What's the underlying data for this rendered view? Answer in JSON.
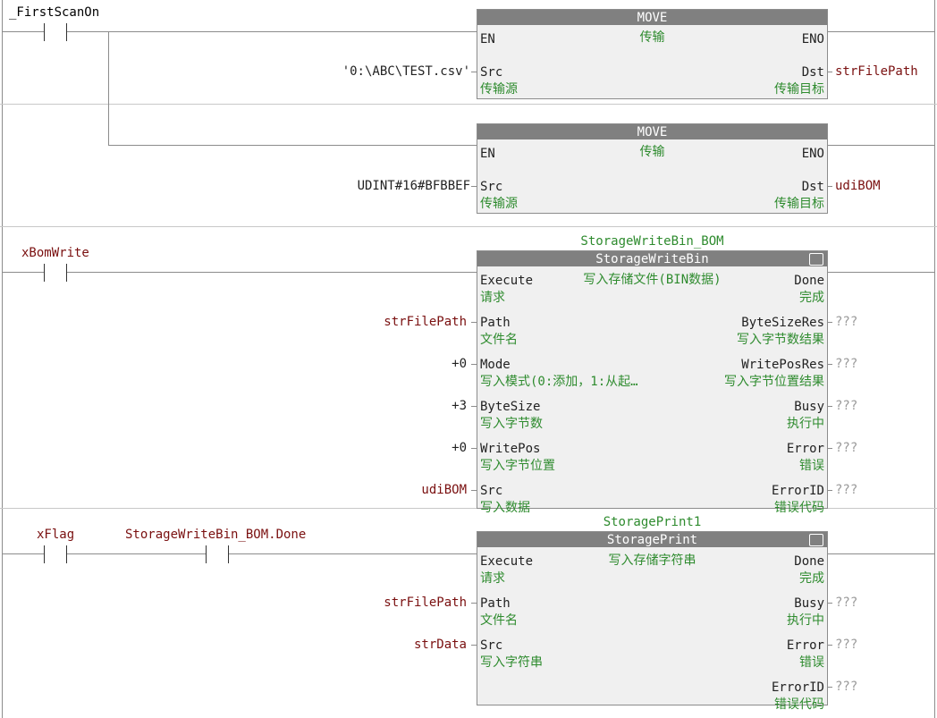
{
  "rung1": {
    "contact_label": "_FirstScanOn",
    "block1": {
      "header": "MOVE",
      "subtitle": "传输",
      "en": "EN",
      "eno": "ENO",
      "src": "Src",
      "src_cn": "传输源",
      "dst": "Dst",
      "dst_cn": "传输目标",
      "src_value": "'0:\\ABC\\TEST.csv'",
      "dst_var": "strFilePath"
    },
    "block2": {
      "header": "MOVE",
      "subtitle": "传输",
      "en": "EN",
      "eno": "ENO",
      "src": "Src",
      "src_cn": "传输源",
      "dst": "Dst",
      "dst_cn": "传输目标",
      "src_value": "UDINT#16#BFBBEF",
      "dst_var": "udiBOM"
    }
  },
  "rung2": {
    "contact_label": "xBomWrite",
    "instance": "StorageWriteBin_BOM",
    "header": "StorageWriteBin",
    "subtitle": "写入存储文件(BIN数据)",
    "inputs": [
      {
        "name": "Execute",
        "cn": "请求",
        "value": ""
      },
      {
        "name": "Path",
        "cn": "文件名",
        "value": "strFilePath"
      },
      {
        "name": "Mode",
        "cn": "写入模式(0:添加，1:从起…",
        "value": "+0"
      },
      {
        "name": "ByteSize",
        "cn": "写入字节数",
        "value": "+3"
      },
      {
        "name": "WritePos",
        "cn": "写入字节位置",
        "value": "+0"
      },
      {
        "name": "Src",
        "cn": "写入数据",
        "value": "udiBOM"
      }
    ],
    "outputs": [
      {
        "name": "Done",
        "cn": "完成",
        "value": ""
      },
      {
        "name": "ByteSizeRes",
        "cn": "写入字节数结果",
        "value": "???"
      },
      {
        "name": "WritePosRes",
        "cn": "写入字节位置结果",
        "value": "???"
      },
      {
        "name": "Busy",
        "cn": "执行中",
        "value": "???"
      },
      {
        "name": "Error",
        "cn": "错误",
        "value": "???"
      },
      {
        "name": "ErrorID",
        "cn": "错误代码",
        "value": "???"
      }
    ]
  },
  "rung3": {
    "contact1_label": "xFlag",
    "contact2_label": "StorageWriteBin_BOM.Done",
    "instance": "StoragePrint1",
    "header": "StoragePrint",
    "subtitle": "写入存储字符串",
    "inputs": [
      {
        "name": "Execute",
        "cn": "请求",
        "value": ""
      },
      {
        "name": "Path",
        "cn": "文件名",
        "value": "strFilePath"
      },
      {
        "name": "Src",
        "cn": "写入字符串",
        "value": "strData"
      }
    ],
    "outputs": [
      {
        "name": "Done",
        "cn": "完成",
        "value": ""
      },
      {
        "name": "Busy",
        "cn": "执行中",
        "value": "???"
      },
      {
        "name": "Error",
        "cn": "错误",
        "value": "???"
      },
      {
        "name": "ErrorID",
        "cn": "错误代码",
        "value": "???"
      }
    ]
  },
  "colors": {
    "variable": "#7a1010",
    "comment": "#2e8b2e",
    "header": "#808080",
    "unassigned": "#9a9a9a"
  }
}
